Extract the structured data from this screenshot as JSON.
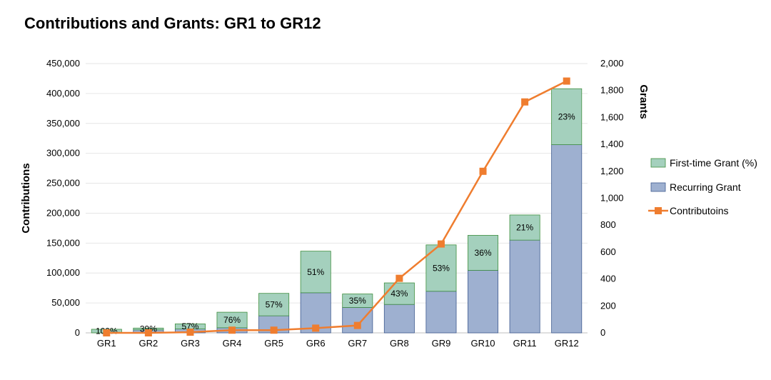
{
  "chart_data": {
    "type": "bar",
    "title": "Contributions and Grants: GR1 to GR12",
    "categories": [
      "GR1",
      "GR2",
      "GR3",
      "GR4",
      "GR5",
      "GR6",
      "GR7",
      "GR8",
      "GR9",
      "GR10",
      "GR11",
      "GR12"
    ],
    "series": [
      {
        "name": "Recurring Grant",
        "axis": "left",
        "stack": "grants",
        "values": [
          0,
          5000,
          6500,
          8500,
          28500,
          67000,
          42500,
          47500,
          69500,
          104500,
          155000,
          314500
        ]
      },
      {
        "name": "First-time Grant (%)",
        "axis": "left",
        "stack": "grants",
        "values": [
          6000,
          3000,
          8500,
          26000,
          37500,
          69500,
          22500,
          36000,
          77500,
          58500,
          42000,
          93500
        ],
        "data_labels": [
          "100%",
          "39%",
          "57%",
          "76%",
          "57%",
          "51%",
          "35%",
          "43%",
          "53%",
          "36%",
          "21%",
          "23%"
        ]
      },
      {
        "name": "Contributoins",
        "type": "line",
        "axis": "right",
        "values": [
          0,
          0,
          5,
          20,
          20,
          35,
          55,
          405,
          660,
          1200,
          1715,
          1870
        ]
      }
    ],
    "ylabel": "Contributions",
    "y2label": "Grants",
    "ylim": [
      0,
      450000
    ],
    "y2lim": [
      0,
      2000
    ],
    "yticks": [
      "0",
      "50,000",
      "100,000",
      "150,000",
      "200,000",
      "250,000",
      "300,000",
      "350,000",
      "400,000",
      "450,000"
    ],
    "y2ticks": [
      "0",
      "200",
      "400",
      "600",
      "800",
      "1,000",
      "1,200",
      "1,400",
      "1,600",
      "1,800",
      "2,000"
    ],
    "legend_position": "right",
    "colors": {
      "first_time": "#a4d0bd",
      "first_time_edge": "#3f8f3f",
      "recurring": "#9eb0d0",
      "recurring_edge": "#3e5a8f",
      "line": "#ef7d2f",
      "grid": "#e6e6e6"
    }
  }
}
